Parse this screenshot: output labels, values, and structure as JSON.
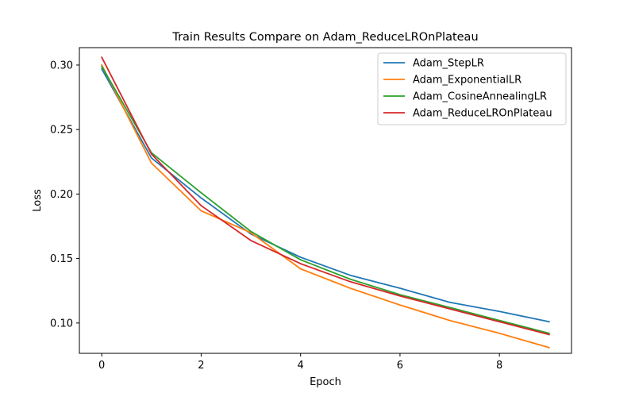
{
  "chart_data": {
    "type": "line",
    "title": "Train Results Compare on Adam_ReduceLROnPlateau",
    "xlabel": "Epoch",
    "ylabel": "Loss",
    "xlim": [
      -0.45,
      9.45
    ],
    "ylim": [
      0.0765,
      0.3135
    ],
    "xticks": [
      0,
      2,
      4,
      6,
      8
    ],
    "yticks": [
      0.1,
      0.15,
      0.2,
      0.25,
      0.3
    ],
    "ytick_labels": [
      "0.10",
      "0.15",
      "0.20",
      "0.25",
      "0.30"
    ],
    "grid": false,
    "legend_position": "top-right",
    "x": [
      0,
      1,
      2,
      3,
      4,
      5,
      6,
      7,
      8,
      9
    ],
    "series": [
      {
        "name": "Adam_StepLR",
        "color": "#1f77b4",
        "values": [
          0.297,
          0.228,
          0.197,
          0.169,
          0.151,
          0.137,
          0.127,
          0.116,
          0.109,
          0.101
        ]
      },
      {
        "name": "Adam_ExponentialLR",
        "color": "#ff7f0e",
        "values": [
          0.3,
          0.224,
          0.187,
          0.17,
          0.142,
          0.127,
          0.114,
          0.102,
          0.092,
          0.081
        ]
      },
      {
        "name": "Adam_CosineAnnealingLR",
        "color": "#2ca02c",
        "values": [
          0.299,
          0.232,
          0.201,
          0.171,
          0.149,
          0.134,
          0.122,
          0.112,
          0.102,
          0.092
        ]
      },
      {
        "name": "Adam_ReduceLROnPlateau",
        "color": "#d62728",
        "values": [
          0.306,
          0.231,
          0.191,
          0.164,
          0.146,
          0.132,
          0.121,
          0.111,
          0.101,
          0.091
        ]
      }
    ]
  }
}
